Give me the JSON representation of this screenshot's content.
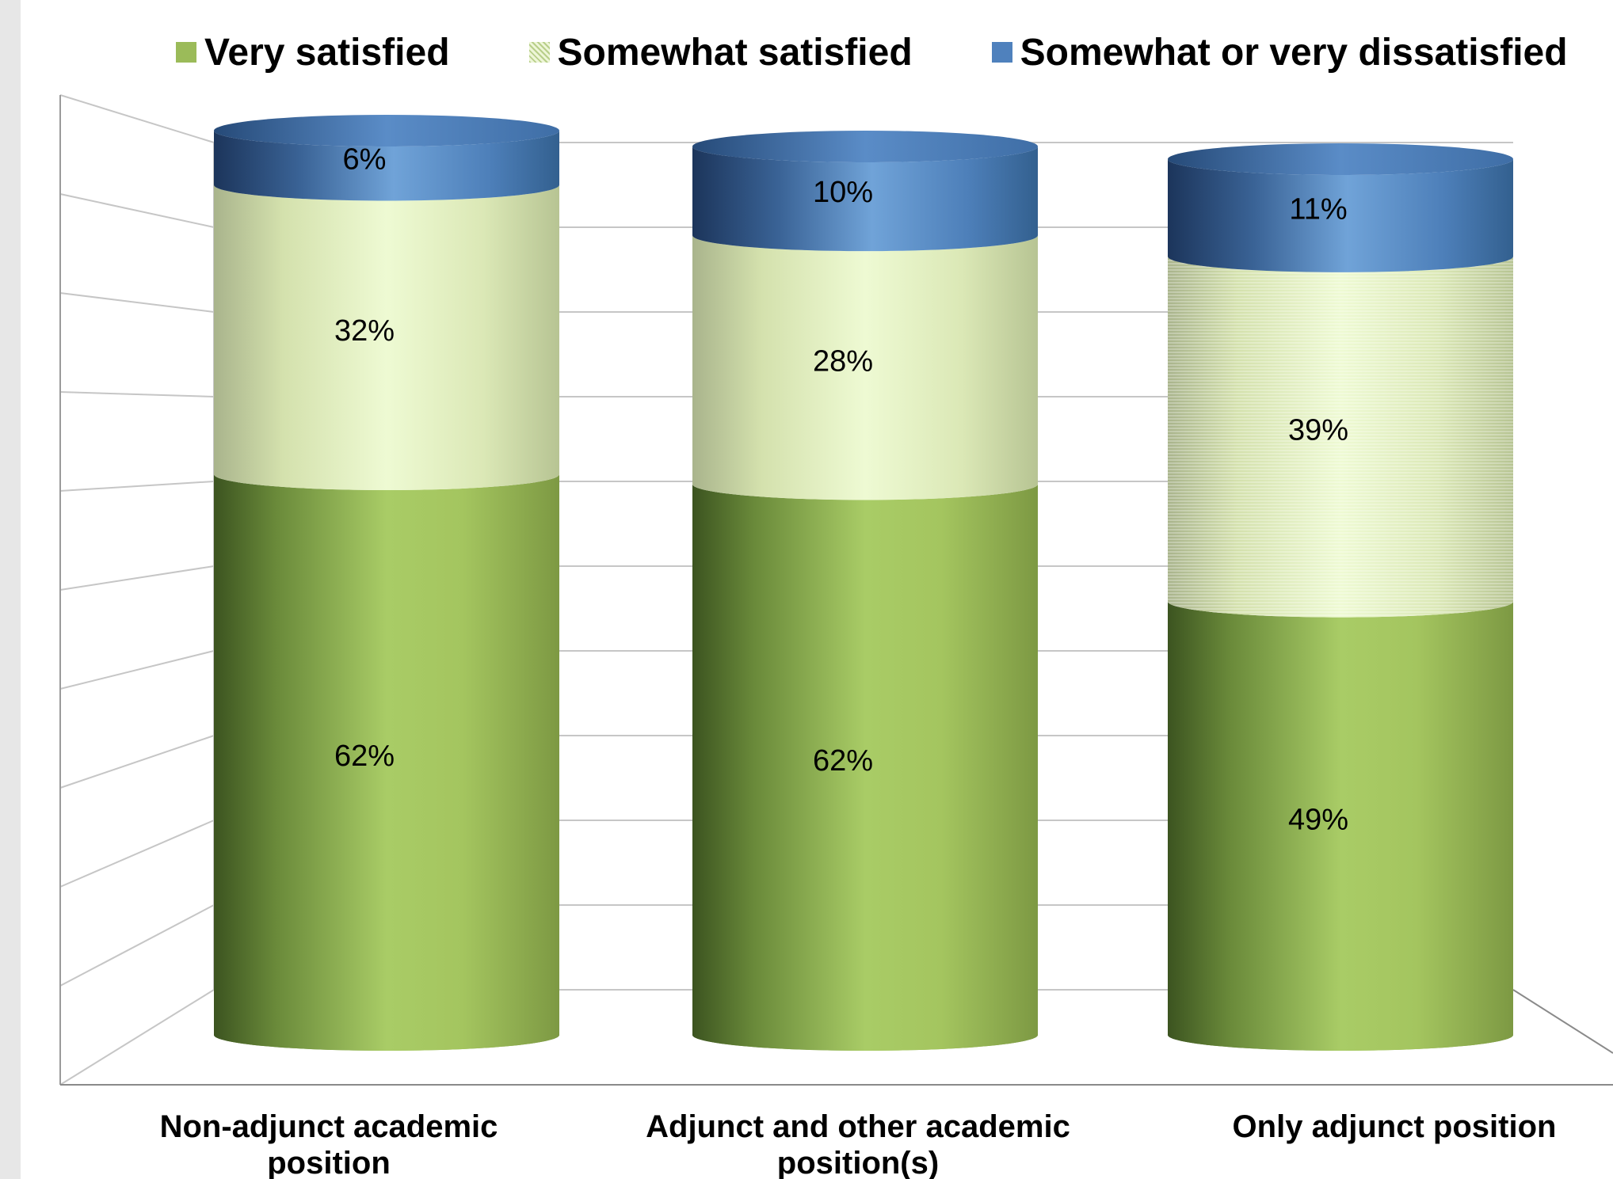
{
  "chart_data": {
    "type": "bar",
    "stacked": true,
    "style": "3d-cylinder",
    "categories": [
      [
        "Non-adjunct academic",
        "position"
      ],
      [
        "Adjunct and other academic",
        "position(s)"
      ],
      [
        "Only adjunct position"
      ]
    ],
    "series": [
      {
        "name": "Very satisfied",
        "values": [
          62,
          62,
          49
        ],
        "labels": [
          "62%",
          "62%",
          "49%"
        ],
        "color": "#9bbb59"
      },
      {
        "name": "Somewhat satisfied",
        "values": [
          32,
          28,
          39
        ],
        "labels": [
          "32%",
          "28%",
          "39%"
        ],
        "color": "#e6f3c6"
      },
      {
        "name": "Somewhat or very dissatisfied",
        "values": [
          6,
          10,
          11
        ],
        "labels": [
          "6%",
          "10%",
          "11%"
        ],
        "color": "#4f81bd"
      }
    ],
    "ylim": [
      0,
      100
    ],
    "grid": true,
    "legend_position": "top"
  }
}
